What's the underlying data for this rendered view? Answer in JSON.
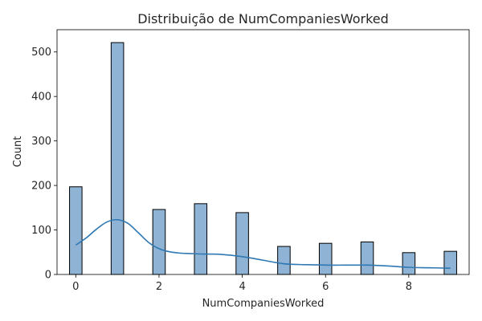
{
  "chart_data": {
    "type": "bar",
    "title": "Distribuição de NumCompaniesWorked",
    "xlabel": "NumCompaniesWorked",
    "ylabel": "Count",
    "xlim": [
      -0.45,
      9.45
    ],
    "ylim": [
      0,
      550
    ],
    "bin_width": 0.3,
    "x_ticks": [
      0,
      2,
      4,
      6,
      8
    ],
    "y_ticks": [
      0,
      100,
      200,
      300,
      400,
      500
    ],
    "bars": [
      {
        "x": 0,
        "value": 197
      },
      {
        "x": 1,
        "value": 521
      },
      {
        "x": 2,
        "value": 146
      },
      {
        "x": 3,
        "value": 159
      },
      {
        "x": 4,
        "value": 139
      },
      {
        "x": 5,
        "value": 63
      },
      {
        "x": 6,
        "value": 70
      },
      {
        "x": 7,
        "value": 73
      },
      {
        "x": 8,
        "value": 49
      },
      {
        "x": 9,
        "value": 52
      }
    ],
    "kde": {
      "x": [
        0,
        0.25,
        0.5,
        0.75,
        1.0,
        1.25,
        1.5,
        1.75,
        2.0,
        2.25,
        2.5,
        2.75,
        3.0,
        3.5,
        4.0,
        4.5,
        5.0,
        5.5,
        6.0,
        6.5,
        7.0,
        7.5,
        8.0,
        8.5,
        9.0
      ],
      "y": [
        66,
        82,
        102,
        118,
        123,
        115,
        94,
        72,
        58,
        51,
        48,
        47,
        46,
        45,
        40,
        32,
        24,
        22,
        21,
        21,
        21,
        19,
        16,
        15,
        14
      ]
    },
    "colors": {
      "bar_fill": "#8fb3d4",
      "bar_edge": "#000000",
      "kde_line": "#2e78b4",
      "axis": "#000000",
      "text": "#262626"
    },
    "grid": false,
    "legend": "none"
  }
}
